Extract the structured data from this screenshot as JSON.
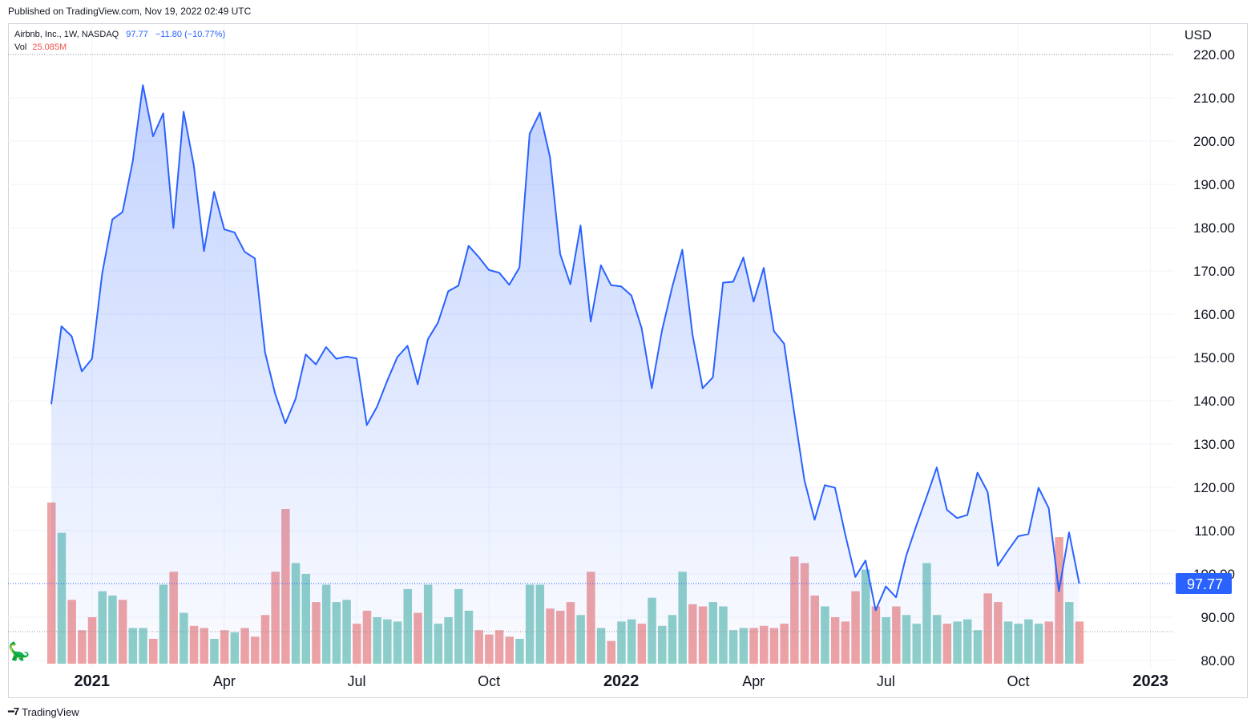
{
  "published": "Published on TradingView.com, Nov 19, 2022 02:49 UTC",
  "legend": {
    "symbol": "Airbnb, Inc., 1W, NASDAQ",
    "last": "97.77",
    "change": "−11.80 (−10.77%)",
    "vol_label": "Vol",
    "vol_value": "25.085M"
  },
  "currency": "USD",
  "footer_brand": "TradingView",
  "icons": {
    "brand": "tradingview-logo-icon",
    "dino": "dino-icon"
  },
  "colors": {
    "line": "#2962ff",
    "area": "#2962ff",
    "vol_up": "#8fd0c8",
    "vol_down": "#f0a3a3",
    "last_badge": "#2962ff"
  },
  "chart_data": {
    "type": "line",
    "title": "Airbnb, Inc., 1W, NASDAQ",
    "ylim": [
      80,
      220
    ],
    "y_ticks": [
      220,
      210,
      200,
      190,
      180,
      170,
      160,
      150,
      140,
      130,
      120,
      110,
      100,
      90,
      80
    ],
    "y_tick_labels": [
      "220.00",
      "210.00",
      "200.00",
      "190.00",
      "180.00",
      "170.00",
      "160.00",
      "150.00",
      "140.00",
      "130.00",
      "120.00",
      "110.00",
      "100.00",
      "90.00",
      "80.00"
    ],
    "x_tick_labels": [
      {
        "label": "2021",
        "week": 4,
        "bold": true
      },
      {
        "label": "Apr",
        "week": 17,
        "bold": false
      },
      {
        "label": "Jul",
        "week": 30,
        "bold": false
      },
      {
        "label": "Oct",
        "week": 43,
        "bold": false
      },
      {
        "label": "2022",
        "week": 56,
        "bold": true
      },
      {
        "label": "Apr",
        "week": 69,
        "bold": false
      },
      {
        "label": "Jul",
        "week": 82,
        "bold": false
      },
      {
        "label": "Oct",
        "week": 95,
        "bold": false
      },
      {
        "label": "2023",
        "week": 108,
        "bold": true
      }
    ],
    "last_price": 97.77,
    "last_price_label": "97.77",
    "series": [
      {
        "values": [
          139.2,
          157.2,
          154.9,
          146.8,
          149.7,
          169.4,
          181.9,
          183.6,
          195.3,
          212.9,
          201.1,
          206.4,
          179.9,
          206.8,
          194.4,
          174.6,
          188.3,
          179.6,
          178.9,
          174.4,
          172.9,
          151.2,
          141.6,
          134.8,
          140.4,
          150.7,
          148.4,
          152.4,
          149.7,
          150.2,
          149.8,
          134.4,
          138.6,
          144.6,
          150.1,
          152.7,
          143.8,
          154.2,
          158.1,
          165.3,
          166.6,
          175.8,
          173.2,
          170.2,
          169.6,
          166.8,
          170.8,
          201.7,
          206.6,
          196.3,
          173.9,
          166.9,
          180.5,
          158.3,
          171.3,
          166.7,
          166.4,
          164.3,
          156.8,
          142.9,
          156.2,
          166.2,
          174.9,
          155.3,
          142.9,
          145.4,
          167.3,
          167.5,
          173.1,
          162.9,
          170.7,
          156.1,
          153.2,
          137.1,
          121.6,
          112.5,
          120.5,
          119.9,
          109.2,
          99.3,
          103.1,
          91.6,
          97.1,
          94.6,
          104.2,
          111.2,
          117.8,
          124.6,
          114.8,
          112.9,
          113.6,
          123.4,
          118.9,
          101.9,
          105.4,
          108.7,
          109.2,
          119.9,
          115.2,
          96.0,
          109.6,
          97.77
        ]
      }
    ],
    "volume": {
      "label": "Vol",
      "values": [
        116.5,
        109.5,
        94.0,
        87.0,
        90.0,
        96.0,
        95.0,
        94.0,
        87.5,
        87.5,
        85.0,
        97.5,
        100.5,
        91.0,
        88.0,
        87.5,
        85.0,
        87.0,
        86.5,
        87.5,
        85.5,
        90.5,
        100.5,
        115.0,
        102.5,
        100.0,
        93.5,
        97.5,
        93.5,
        94.0,
        88.5,
        91.5,
        90.0,
        89.5,
        89.0,
        96.5,
        91.0,
        97.5,
        88.5,
        90.0,
        96.5,
        91.5,
        87.0,
        86.0,
        87.0,
        85.5,
        85.0,
        97.5,
        97.5,
        92.0,
        91.5,
        93.5,
        90.5,
        100.5,
        87.5,
        84.5,
        89.0,
        89.5,
        88.5,
        94.5,
        88.0,
        90.5,
        100.5,
        93.0,
        92.5,
        93.5,
        92.5,
        87.0,
        87.5,
        87.5,
        88.0,
        87.5,
        88.5,
        104.0,
        102.5,
        95.0,
        92.5,
        90.0,
        89.0,
        96.0,
        101.0,
        92.5,
        90.0,
        92.5,
        90.5,
        88.5,
        102.5,
        90.5,
        88.5,
        89.0,
        89.5,
        87.0,
        95.5,
        93.5,
        89.0,
        88.5,
        89.5,
        88.5,
        89.0,
        108.5,
        93.5,
        89.0
      ],
      "up": [
        false,
        true,
        false,
        false,
        false,
        true,
        true,
        false,
        true,
        true,
        false,
        true,
        false,
        true,
        false,
        false,
        true,
        false,
        true,
        false,
        false,
        false,
        false,
        false,
        true,
        true,
        false,
        true,
        true,
        true,
        false,
        false,
        true,
        true,
        true,
        true,
        false,
        true,
        true,
        true,
        true,
        true,
        false,
        false,
        false,
        false,
        true,
        true,
        true,
        false,
        false,
        false,
        true,
        false,
        true,
        false,
        true,
        true,
        false,
        true,
        true,
        true,
        true,
        false,
        false,
        true,
        true,
        true,
        true,
        false,
        false,
        false,
        false,
        false,
        false,
        false,
        true,
        false,
        false,
        false,
        true,
        false,
        true,
        false,
        true,
        true,
        true,
        true,
        false,
        true,
        true,
        true,
        false,
        false,
        true,
        true,
        true,
        true,
        false,
        false,
        true,
        false
      ],
      "last_value_label": "25.085M"
    }
  }
}
